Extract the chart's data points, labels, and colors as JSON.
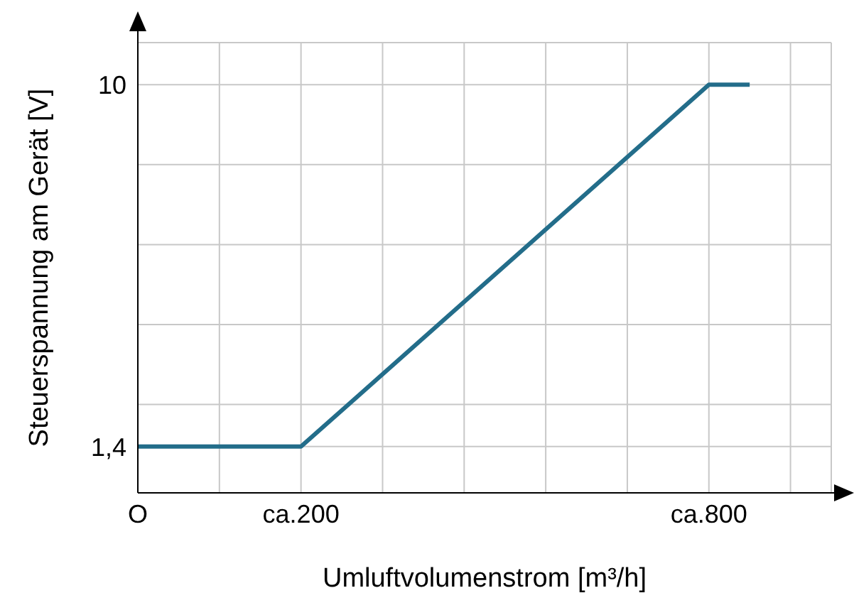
{
  "chart_data": {
    "type": "line",
    "xlabel": "Umluftvolumenstrom [m³/h]",
    "ylabel": "Steuerspannung am Gerät [V]",
    "categories": [
      "O",
      null,
      null,
      null,
      "ca.200",
      null,
      null,
      null,
      null,
      null,
      null,
      null,
      null,
      null,
      "ca.800",
      null,
      null
    ],
    "series": [
      {
        "color": "#236d8a",
        "values": [
          1.4,
          null,
          null,
          null,
          1.4,
          null,
          null,
          null,
          null,
          null,
          null,
          null,
          null,
          null,
          10,
          10,
          null
        ]
      }
    ],
    "ylim": [
      0.3,
      11
    ],
    "yticks": [
      {
        "value": 1.4,
        "label": "1,4"
      },
      {
        "value": 2.4,
        "label": null
      },
      {
        "value": 4.3,
        "label": null
      },
      {
        "value": 6.2,
        "label": null
      },
      {
        "value": 8.1,
        "label": null
      },
      {
        "value": 10,
        "label": "10"
      }
    ],
    "grid": true,
    "marker": "none",
    "line_style": "solid"
  }
}
